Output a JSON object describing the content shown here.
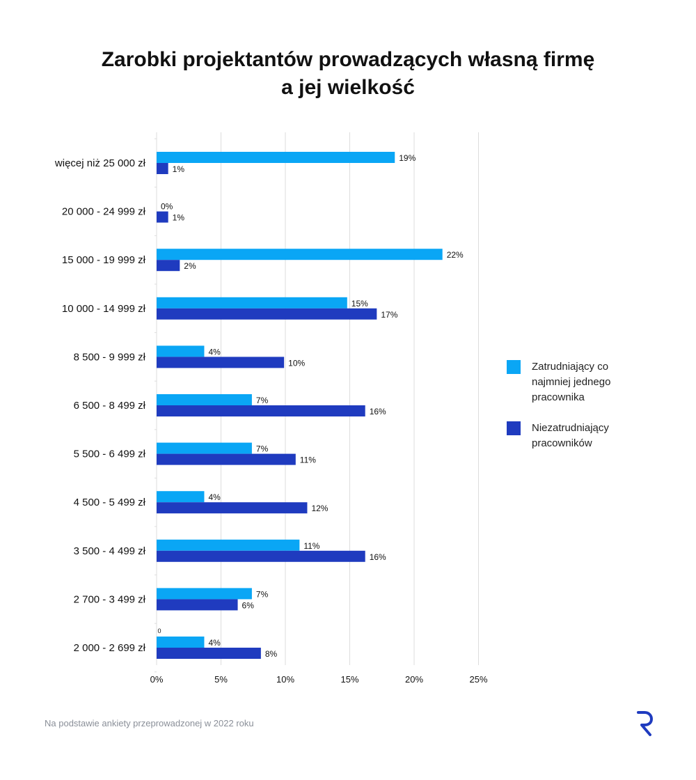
{
  "title_lines": [
    "Zarobki projektantów prowadzących własną firmę",
    "a jej wielkość"
  ],
  "footnote": "Na podstawie ankiety przeprowadzonej w 2022 roku",
  "colors": {
    "series1": "#0aa6f5",
    "series2": "#1f3bbf",
    "grid": "#dcdcdc",
    "logo": "#1f3bbf"
  },
  "chart_data": {
    "type": "bar",
    "orientation": "horizontal",
    "categories": [
      "więcej niż 25 000 zł",
      "20 000 - 24 999 zł",
      "15 000 - 19 999 zł",
      "10 000 - 14 999 zł",
      "8 500 - 9 999 zł",
      "6 500 - 8 499 zł",
      "5 500 - 6 499 zł",
      "4 500 - 5 499 zł",
      "3 500 - 4 499 zł",
      "2 700 - 3 499 zł",
      "2 000 - 2 699 zł"
    ],
    "series": [
      {
        "name": "Zatrudniający co najmniej jednego pracownika",
        "values": [
          18.5,
          0,
          22.2,
          14.8,
          3.7,
          7.4,
          7.4,
          3.7,
          11.1,
          7.4,
          3.7
        ],
        "labels": [
          "19%",
          "0%",
          "22%",
          "15%",
          "4%",
          "7%",
          "7%",
          "4%",
          "11%",
          "7%",
          "4%"
        ]
      },
      {
        "name": "Niezatrudniający pracowników",
        "values": [
          0.9,
          0.9,
          1.8,
          17.1,
          9.9,
          16.2,
          10.8,
          11.7,
          16.2,
          6.3,
          8.1
        ],
        "labels": [
          "1%",
          "1%",
          "2%",
          "17%",
          "10%",
          "16%",
          "11%",
          "12%",
          "16%",
          "6%",
          "8%"
        ]
      }
    ],
    "annotations": [
      {
        "category": "2 000 - 2 699 zł",
        "text": "0"
      }
    ],
    "xticks": [
      "0%",
      "5%",
      "10%",
      "15%",
      "20%",
      "25%"
    ],
    "xlim": [
      0,
      25
    ],
    "grid": true,
    "legend_position": "right"
  }
}
